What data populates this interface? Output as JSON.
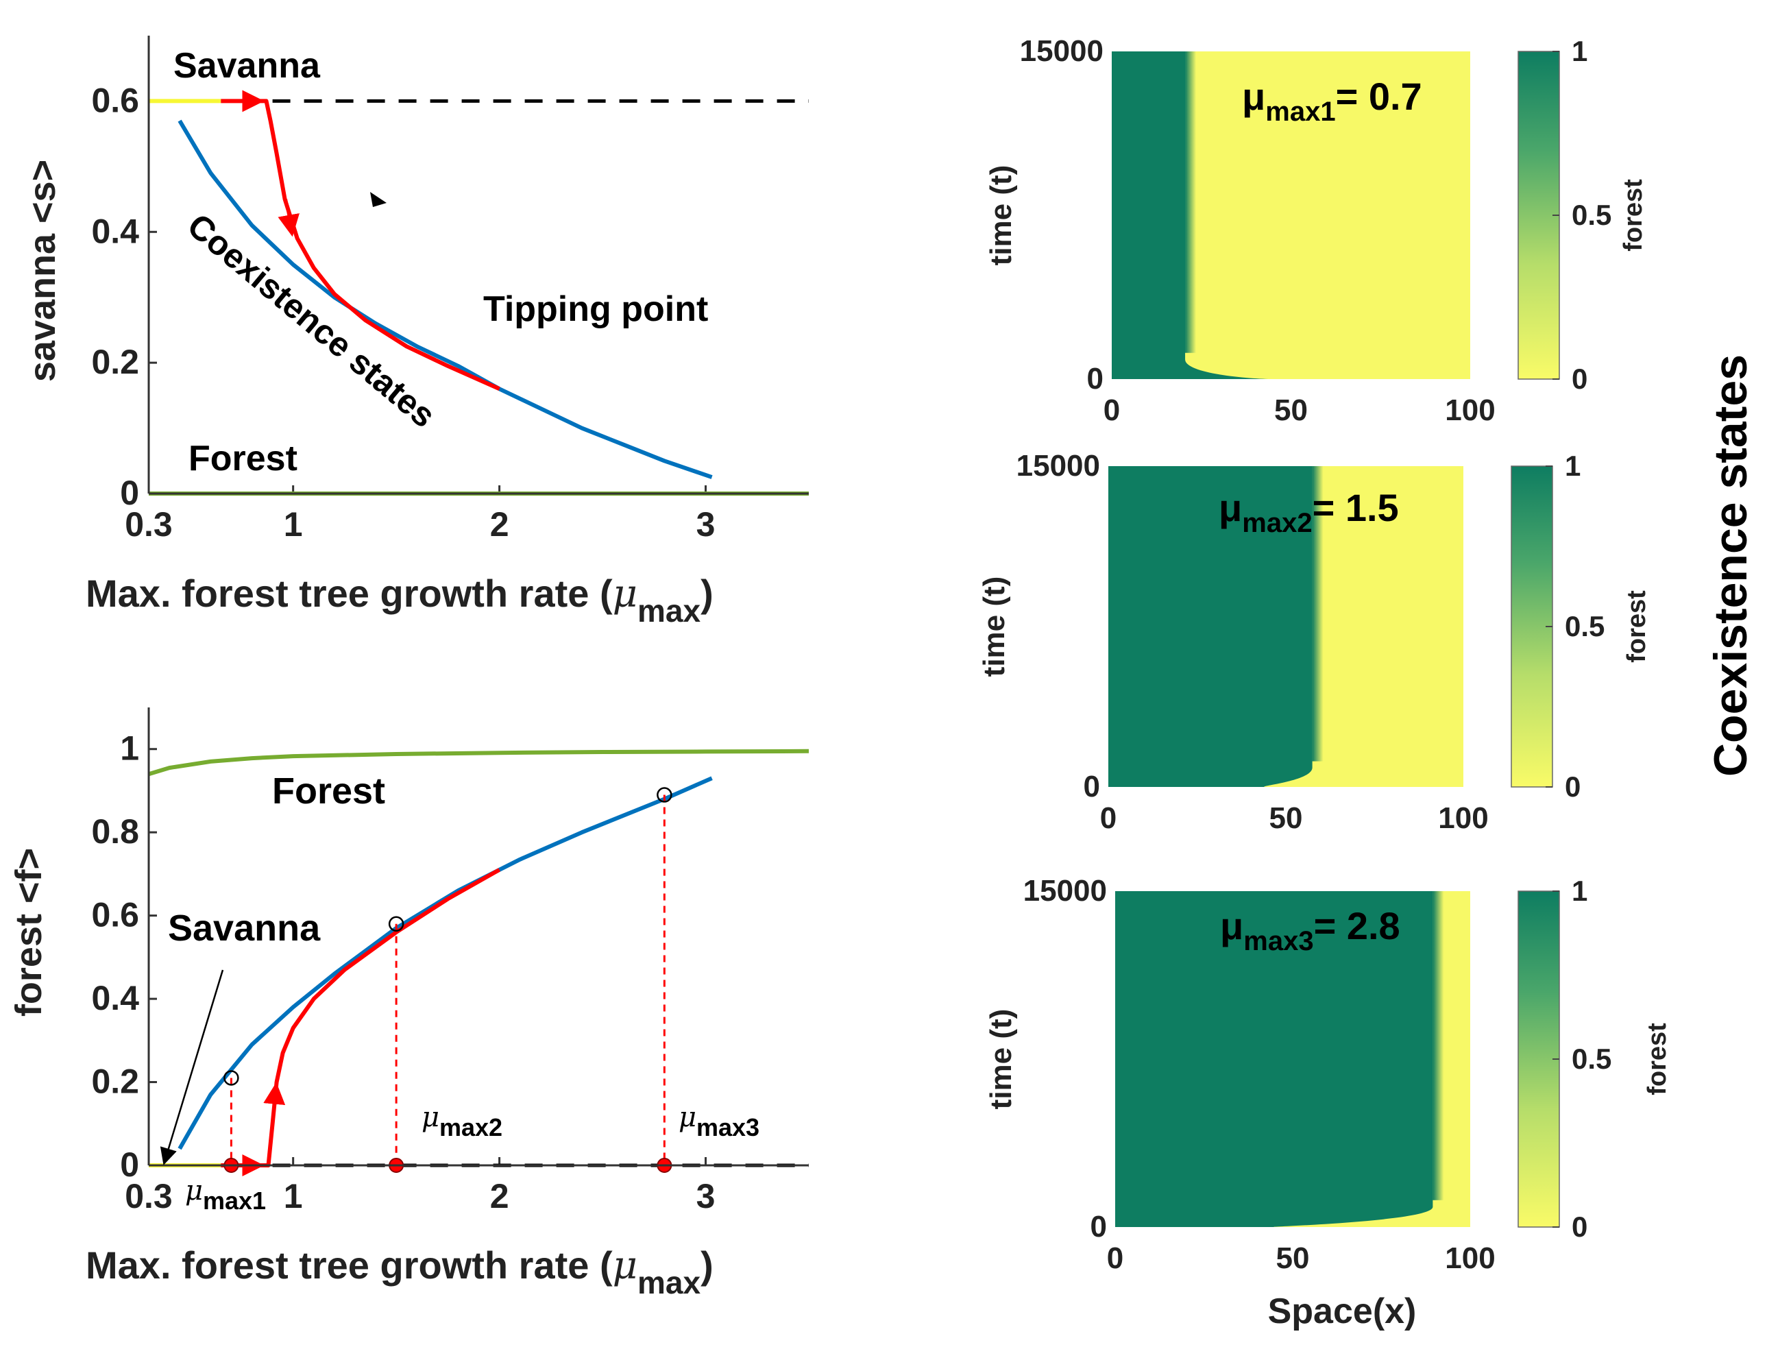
{
  "side_title": "Coexistence states",
  "chart_data": [
    {
      "id": "savanna_bifurcation",
      "type": "line",
      "xlabel": "Max. forest tree growth rate (",
      "xlabel_symbol": "μ",
      "xlabel_sub": "max",
      "xlabel_close": ")",
      "ylabel": "savanna <s>",
      "xlim": [
        0.3,
        3.5
      ],
      "ylim": [
        0,
        0.7
      ],
      "xticks": [
        0.3,
        1,
        2,
        3
      ],
      "xtick_labels": [
        "0.3",
        "1",
        "2",
        "3"
      ],
      "yticks": [
        0,
        0.2,
        0.4,
        0.6
      ],
      "ytick_labels": [
        "0",
        "0.2",
        "0.4",
        "0.6"
      ],
      "annotations": {
        "savanna": "Savanna",
        "forest": "Forest",
        "tipping": "Tipping point",
        "coexistence": "Coexistence states"
      },
      "series": [
        {
          "name": "Savanna stable",
          "color": "#f7f735",
          "style": "solid",
          "x": [
            0.3,
            0.65
          ],
          "y": [
            0.6,
            0.6
          ]
        },
        {
          "name": "Savanna unstable",
          "color": "#000000",
          "style": "dashed",
          "x": [
            0.9,
            3.5
          ],
          "y": [
            0.6,
            0.6
          ]
        },
        {
          "name": "Forest",
          "color": "#77ac30",
          "style": "solid",
          "x": [
            0.3,
            3.5
          ],
          "y": [
            0,
            0
          ]
        },
        {
          "name": "Coexistence states",
          "color": "#0072bd",
          "style": "solid",
          "x": [
            0.45,
            0.6,
            0.8,
            1.0,
            1.2,
            1.4,
            1.6,
            1.8,
            2.0,
            2.2,
            2.4,
            2.6,
            2.8,
            3.03
          ],
          "y": [
            0.57,
            0.49,
            0.41,
            0.35,
            0.3,
            0.26,
            0.225,
            0.195,
            0.16,
            0.13,
            0.1,
            0.075,
            0.05,
            0.025
          ]
        },
        {
          "name": "Tipping path",
          "color": "#ff0000",
          "style": "solid",
          "x": [
            0.65,
            0.87,
            0.89,
            0.92,
            0.96,
            1.02,
            1.1,
            1.2,
            1.35,
            1.55,
            1.75,
            2.0
          ],
          "y": [
            0.6,
            0.6,
            0.57,
            0.52,
            0.45,
            0.39,
            0.345,
            0.305,
            0.265,
            0.225,
            0.195,
            0.16
          ]
        }
      ]
    },
    {
      "id": "forest_bifurcation",
      "type": "line",
      "xlabel": "Max. forest tree growth rate (",
      "xlabel_symbol": "μ",
      "xlabel_sub": "max",
      "xlabel_close": ")",
      "ylabel": "forest <f>",
      "xlim": [
        0.3,
        3.5
      ],
      "ylim": [
        0,
        1.1
      ],
      "xticks": [
        0.3,
        1,
        2,
        3
      ],
      "xtick_labels": [
        "0.3",
        "1",
        "2",
        "3"
      ],
      "yticks": [
        0,
        0.2,
        0.4,
        0.6,
        0.8,
        1
      ],
      "ytick_labels": [
        "0",
        "0.2",
        "0.4",
        "0.6",
        "0.8",
        "1"
      ],
      "annotations": {
        "savanna": "Savanna",
        "forest": "Forest",
        "mu_symbol": "μ",
        "mu1_sub": "max1",
        "mu2_sub": "max2",
        "mu3_sub": "max3"
      },
      "series": [
        {
          "name": "Forest",
          "color": "#77ac30",
          "style": "solid",
          "x": [
            0.3,
            0.4,
            0.6,
            0.8,
            1.0,
            1.5,
            2.0,
            2.5,
            3.0,
            3.5
          ],
          "y": [
            0.94,
            0.955,
            0.97,
            0.978,
            0.983,
            0.988,
            0.991,
            0.993,
            0.994,
            0.995
          ]
        },
        {
          "name": "Savanna stable",
          "color": "#f7f735",
          "style": "solid",
          "x": [
            0.3,
            0.65
          ],
          "y": [
            0,
            0
          ]
        },
        {
          "name": "Savanna unstable",
          "color": "#000000",
          "style": "dashed",
          "x": [
            0.9,
            3.5
          ],
          "y": [
            0,
            0
          ]
        },
        {
          "name": "Coexistence states",
          "color": "#0072bd",
          "style": "solid",
          "x": [
            0.45,
            0.6,
            0.8,
            1.0,
            1.2,
            1.5,
            1.8,
            2.1,
            2.4,
            2.8,
            3.03
          ],
          "y": [
            0.04,
            0.17,
            0.29,
            0.38,
            0.46,
            0.57,
            0.66,
            0.735,
            0.8,
            0.88,
            0.93
          ]
        },
        {
          "name": "Tipping path",
          "color": "#ff0000",
          "style": "solid",
          "x": [
            0.65,
            0.88,
            0.9,
            0.92,
            0.95,
            1.0,
            1.1,
            1.25,
            1.5,
            1.75,
            2.0
          ],
          "y": [
            0,
            0,
            0.1,
            0.2,
            0.27,
            0.33,
            0.4,
            0.47,
            0.56,
            0.64,
            0.71
          ]
        }
      ],
      "markers": [
        {
          "label": "μmax1",
          "x": 0.7,
          "y_on_curve": 0.21
        },
        {
          "label": "μmax2",
          "x": 1.5,
          "y_on_curve": 0.58
        },
        {
          "label": "μmax3",
          "x": 2.8,
          "y_on_curve": 0.89
        }
      ]
    },
    {
      "id": "heatmap_1",
      "type": "heatmap",
      "title_symbol": "μ",
      "title_sub": "max1",
      "title_value": "= 0.7",
      "mu_max": 0.7,
      "ylabel": "time (t)",
      "xlabel": "",
      "xlim": [
        0,
        100
      ],
      "ylim": [
        0,
        15000
      ],
      "xticks": [
        0,
        50,
        100
      ],
      "xtick_labels": [
        "0",
        "50",
        "100"
      ],
      "yticks": [
        0,
        15000
      ],
      "ytick_labels": [
        "0",
        "15000"
      ],
      "colorbar_label": "forest",
      "colorbar_ticks": [
        0,
        0.5,
        1
      ],
      "colorbar_tick_labels": [
        "0",
        "0.5",
        "1"
      ],
      "front_x": 22,
      "initial_front_x": 45,
      "colors": {
        "forest": "#0e7d61",
        "savanna": "#f7f967"
      }
    },
    {
      "id": "heatmap_2",
      "type": "heatmap",
      "title_symbol": "μ",
      "title_sub": "max2",
      "title_value": "= 1.5",
      "mu_max": 1.5,
      "ylabel": "time (t)",
      "xlabel": "",
      "xlim": [
        0,
        100
      ],
      "ylim": [
        0,
        15000
      ],
      "xticks": [
        0,
        50,
        100
      ],
      "xtick_labels": [
        "0",
        "50",
        "100"
      ],
      "yticks": [
        0,
        15000
      ],
      "ytick_labels": [
        "0",
        "15000"
      ],
      "colorbar_label": "forest",
      "colorbar_ticks": [
        0,
        0.5,
        1
      ],
      "colorbar_tick_labels": [
        "0",
        "0.5",
        "1"
      ],
      "front_x": 59,
      "initial_front_x": 45,
      "colors": {
        "forest": "#0e7d61",
        "savanna": "#f7f967"
      }
    },
    {
      "id": "heatmap_3",
      "type": "heatmap",
      "title_symbol": "μ",
      "title_sub": "max3",
      "title_value": "= 2.8",
      "mu_max": 2.8,
      "ylabel": "time (t)",
      "xlabel": "Space(x)",
      "xlim": [
        0,
        100
      ],
      "ylim": [
        0,
        15000
      ],
      "xticks": [
        0,
        50,
        100
      ],
      "xtick_labels": [
        "0",
        "50",
        "100"
      ],
      "yticks": [
        0,
        15000
      ],
      "ytick_labels": [
        "0",
        "15000"
      ],
      "colorbar_label": "forest",
      "colorbar_ticks": [
        0,
        0.5,
        1
      ],
      "colorbar_tick_labels": [
        "0",
        "0.5",
        "1"
      ],
      "front_x": 91,
      "initial_front_x": 45,
      "colors": {
        "forest": "#0e7d61",
        "savanna": "#f7f967"
      }
    }
  ]
}
